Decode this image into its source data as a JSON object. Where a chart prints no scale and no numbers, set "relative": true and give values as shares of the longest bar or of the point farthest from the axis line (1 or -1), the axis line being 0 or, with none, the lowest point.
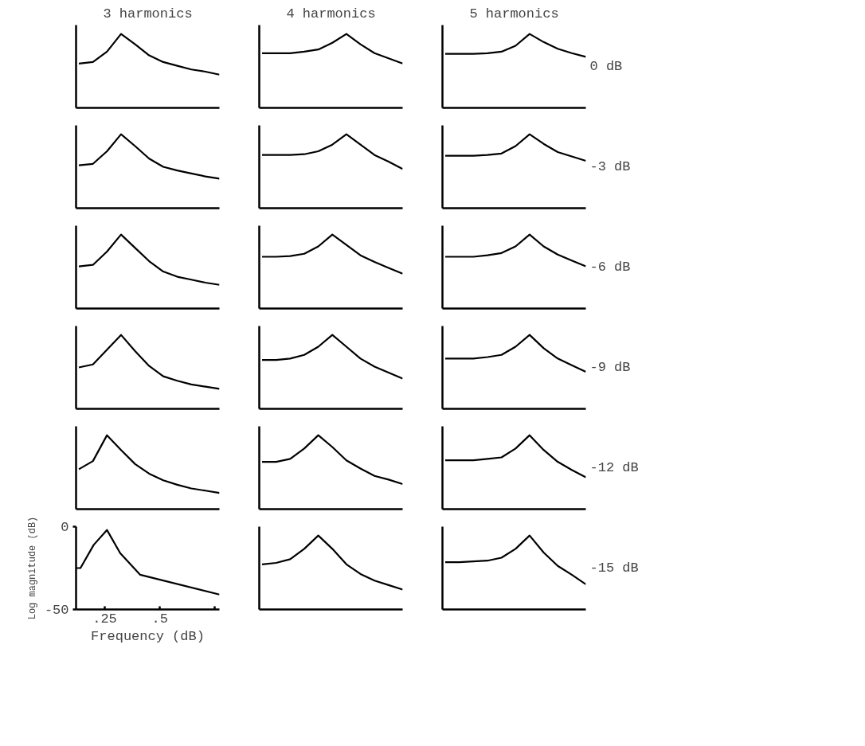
{
  "chart_data": [
    {
      "type": "line",
      "title": "3 harmonics",
      "relative": true,
      "categories": [
        null,
        null,
        null,
        null,
        null,
        null,
        null,
        null,
        null,
        null,
        null
      ],
      "series": [
        {
          "color": "#000000",
          "values": [
            0.6,
            0.62,
            0.76,
            1,
            0.86,
            0.71,
            0.62,
            0.57,
            0.52,
            0.49,
            0.45
          ]
        }
      ],
      "line_style": "solid"
    },
    {
      "type": "line",
      "title": "4 harmonics",
      "relative": true,
      "categories": [
        null,
        null,
        null,
        null,
        null,
        null,
        null,
        null,
        null,
        null,
        null
      ],
      "series": [
        {
          "color": "#000000",
          "values": [
            0.74,
            0.74,
            0.74,
            0.76,
            0.79,
            0.88,
            1,
            0.86,
            0.74,
            0.67,
            0.6
          ]
        }
      ],
      "line_style": "solid"
    },
    {
      "type": "line",
      "title": "5 harmonics",
      "y2label": "0 dB",
      "relative": true,
      "categories": [
        null,
        null,
        null,
        null,
        null,
        null,
        null,
        null,
        null,
        null,
        null
      ],
      "series": [
        {
          "color": "#000000",
          "values": [
            0.73,
            0.73,
            0.73,
            0.74,
            0.76,
            0.84,
            1,
            0.89,
            0.8,
            0.74,
            0.69
          ]
        }
      ],
      "line_style": "solid"
    },
    {
      "type": "line",
      "relative": true,
      "categories": [
        null,
        null,
        null,
        null,
        null,
        null,
        null,
        null,
        null,
        null,
        null
      ],
      "series": [
        {
          "color": "#000000",
          "values": [
            0.58,
            0.6,
            0.77,
            1,
            0.84,
            0.67,
            0.56,
            0.51,
            0.47,
            0.43,
            0.4
          ]
        }
      ],
      "line_style": "solid"
    },
    {
      "type": "line",
      "relative": true,
      "categories": [
        null,
        null,
        null,
        null,
        null,
        null,
        null,
        null,
        null,
        null,
        null
      ],
      "series": [
        {
          "color": "#000000",
          "values": [
            0.72,
            0.72,
            0.72,
            0.73,
            0.77,
            0.86,
            1,
            0.86,
            0.72,
            0.63,
            0.53
          ]
        }
      ],
      "line_style": "solid"
    },
    {
      "type": "line",
      "y2label": "-3 dB",
      "relative": true,
      "categories": [
        null,
        null,
        null,
        null,
        null,
        null,
        null,
        null,
        null,
        null,
        null
      ],
      "series": [
        {
          "color": "#000000",
          "values": [
            0.71,
            0.71,
            0.71,
            0.72,
            0.74,
            0.84,
            1,
            0.87,
            0.76,
            0.7,
            0.64
          ]
        }
      ],
      "line_style": "solid"
    },
    {
      "type": "line",
      "relative": true,
      "categories": [
        null,
        null,
        null,
        null,
        null,
        null,
        null,
        null,
        null,
        null,
        null
      ],
      "series": [
        {
          "color": "#000000",
          "values": [
            0.57,
            0.59,
            0.77,
            1,
            0.82,
            0.64,
            0.5,
            0.43,
            0.39,
            0.35,
            0.32
          ]
        }
      ],
      "line_style": "solid"
    },
    {
      "type": "line",
      "relative": true,
      "categories": [
        null,
        null,
        null,
        null,
        null,
        null,
        null,
        null,
        null,
        null,
        null
      ],
      "series": [
        {
          "color": "#000000",
          "values": [
            0.7,
            0.7,
            0.71,
            0.74,
            0.84,
            1,
            0.86,
            0.72,
            0.63,
            0.55,
            0.47
          ]
        }
      ],
      "line_style": "solid"
    },
    {
      "type": "line",
      "y2label": "-6 dB",
      "relative": true,
      "categories": [
        null,
        null,
        null,
        null,
        null,
        null,
        null,
        null,
        null,
        null,
        null
      ],
      "series": [
        {
          "color": "#000000",
          "values": [
            0.7,
            0.7,
            0.7,
            0.72,
            0.75,
            0.84,
            1,
            0.84,
            0.73,
            0.65,
            0.57
          ]
        }
      ],
      "line_style": "solid"
    },
    {
      "type": "line",
      "relative": true,
      "categories": [
        null,
        null,
        null,
        null,
        null,
        null,
        null,
        null,
        null,
        null,
        null
      ],
      "series": [
        {
          "color": "#000000",
          "values": [
            0.56,
            0.6,
            0.8,
            1,
            0.78,
            0.58,
            0.44,
            0.38,
            0.33,
            0.3,
            0.27
          ]
        }
      ],
      "line_style": "solid"
    },
    {
      "type": "line",
      "relative": true,
      "categories": [
        null,
        null,
        null,
        null,
        null,
        null,
        null,
        null,
        null,
        null,
        null
      ],
      "series": [
        {
          "color": "#000000",
          "values": [
            0.66,
            0.66,
            0.68,
            0.73,
            0.84,
            1,
            0.84,
            0.68,
            0.57,
            0.49,
            0.41
          ]
        }
      ],
      "line_style": "solid"
    },
    {
      "type": "line",
      "y2label": "-9 dB",
      "relative": true,
      "categories": [
        null,
        null,
        null,
        null,
        null,
        null,
        null,
        null,
        null,
        null,
        null
      ],
      "series": [
        {
          "color": "#000000",
          "values": [
            0.68,
            0.68,
            0.68,
            0.7,
            0.73,
            0.84,
            1,
            0.82,
            0.68,
            0.59,
            0.5
          ]
        }
      ],
      "line_style": "solid"
    },
    {
      "type": "line",
      "relative": true,
      "categories": [
        null,
        null,
        null,
        null,
        null,
        null,
        null,
        null,
        null,
        null,
        null
      ],
      "series": [
        {
          "color": "#000000",
          "values": [
            0.54,
            0.65,
            1,
            0.8,
            0.61,
            0.48,
            0.39,
            0.33,
            0.28,
            0.25,
            0.22
          ]
        }
      ],
      "line_style": "solid"
    },
    {
      "type": "line",
      "relative": true,
      "categories": [
        null,
        null,
        null,
        null,
        null,
        null,
        null,
        null,
        null,
        null,
        null
      ],
      "series": [
        {
          "color": "#000000",
          "values": [
            0.64,
            0.64,
            0.68,
            0.82,
            1,
            0.84,
            0.66,
            0.55,
            0.45,
            0.4,
            0.34
          ]
        }
      ],
      "line_style": "solid"
    },
    {
      "type": "line",
      "y2label": "-12 dB",
      "relative": true,
      "categories": [
        null,
        null,
        null,
        null,
        null,
        null,
        null,
        null,
        null,
        null,
        null
      ],
      "series": [
        {
          "color": "#000000",
          "values": [
            0.66,
            0.66,
            0.66,
            0.68,
            0.7,
            0.82,
            1,
            0.8,
            0.64,
            0.53,
            0.43
          ]
        }
      ],
      "line_style": "solid"
    },
    {
      "type": "line",
      "xlabel": "Frequency (dB)",
      "ylabel": "Log magnitude (dB)",
      "x": [
        0.12,
        0.14,
        0.2,
        0.26,
        0.32,
        0.41,
        0.77
      ],
      "series": [
        {
          "color": "#000000",
          "values": [
            -25,
            -25,
            -11,
            -2,
            -16,
            -29,
            -41
          ]
        }
      ],
      "xlim": [
        0.12,
        0.77
      ],
      "ylim": [
        -50,
        0
      ],
      "xticks": [
        {
          "value": 0.25,
          "label": ".25"
        },
        {
          "value": 0.5,
          "label": ".5"
        },
        {
          "value": 0.75,
          "label": null
        }
      ],
      "yticks": [
        0,
        -50
      ],
      "line_style": "solid"
    },
    {
      "type": "line",
      "relative": true,
      "categories": [
        null,
        null,
        null,
        null,
        null,
        null,
        null,
        null,
        null,
        null,
        null
      ],
      "series": [
        {
          "color": "#000000",
          "values": [
            0.61,
            0.63,
            0.68,
            0.82,
            1,
            0.82,
            0.61,
            0.48,
            0.39,
            0.33,
            0.27
          ]
        }
      ],
      "line_style": "solid"
    },
    {
      "type": "line",
      "y2label": "-15 dB",
      "relative": true,
      "categories": [
        null,
        null,
        null,
        null,
        null,
        null,
        null,
        null,
        null,
        null,
        null
      ],
      "series": [
        {
          "color": "#000000",
          "values": [
            0.64,
            0.64,
            0.65,
            0.66,
            0.7,
            0.82,
            1,
            0.77,
            0.59,
            0.47,
            0.34
          ]
        }
      ],
      "line_style": "solid"
    }
  ]
}
